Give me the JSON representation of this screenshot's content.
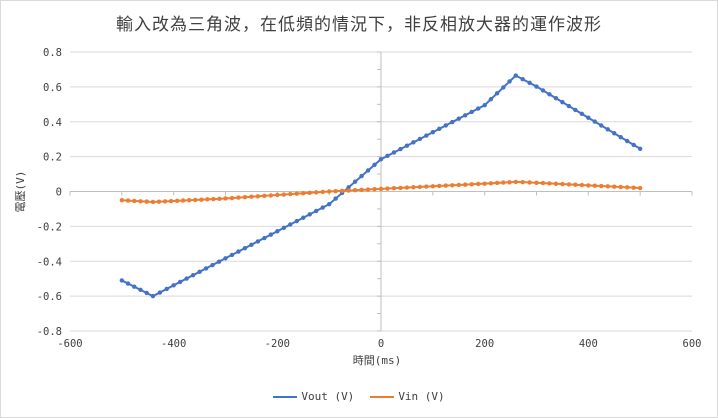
{
  "chart_data": {
    "type": "scatter",
    "title": "輸入改為三角波，在低頻的情況下，非反相放大器的運作波形",
    "xlabel": "時間(ms)",
    "ylabel": "電壓(V)",
    "xlim": [
      -600,
      600
    ],
    "ylim": [
      -0.8,
      0.8
    ],
    "xticks": [
      "-600",
      "-400",
      "-200",
      "0",
      "200",
      "400",
      "600"
    ],
    "yticks": [
      "-0.8",
      "-0.6",
      "-0.4",
      "-0.2",
      "0",
      "0.2",
      "0.4",
      "0.6",
      "0.8"
    ],
    "legend": "bottom",
    "gridlines": "horizontal",
    "series": [
      {
        "name": "Vout (V)",
        "color": "#4472C4",
        "points": [
          [
            -500,
            -0.51
          ],
          [
            -440,
            -0.6
          ],
          [
            -400,
            -0.538
          ],
          [
            -300,
            -0.383
          ],
          [
            -200,
            -0.228
          ],
          [
            -100,
            -0.073
          ],
          [
            0,
            0.185
          ],
          [
            100,
            0.34
          ],
          [
            200,
            0.495
          ],
          [
            260,
            0.665
          ],
          [
            300,
            0.602
          ],
          [
            400,
            0.423
          ],
          [
            500,
            0.245
          ]
        ]
      },
      {
        "name": "Vin (V)",
        "color": "#ED7D31",
        "points": [
          [
            -500,
            -0.05
          ],
          [
            -440,
            -0.06
          ],
          [
            -300,
            -0.04
          ],
          [
            -200,
            -0.02
          ],
          [
            -100,
            0.0
          ],
          [
            0,
            0.015
          ],
          [
            100,
            0.03
          ],
          [
            200,
            0.045
          ],
          [
            260,
            0.055
          ],
          [
            300,
            0.05
          ],
          [
            400,
            0.035
          ],
          [
            500,
            0.02
          ]
        ]
      }
    ]
  }
}
